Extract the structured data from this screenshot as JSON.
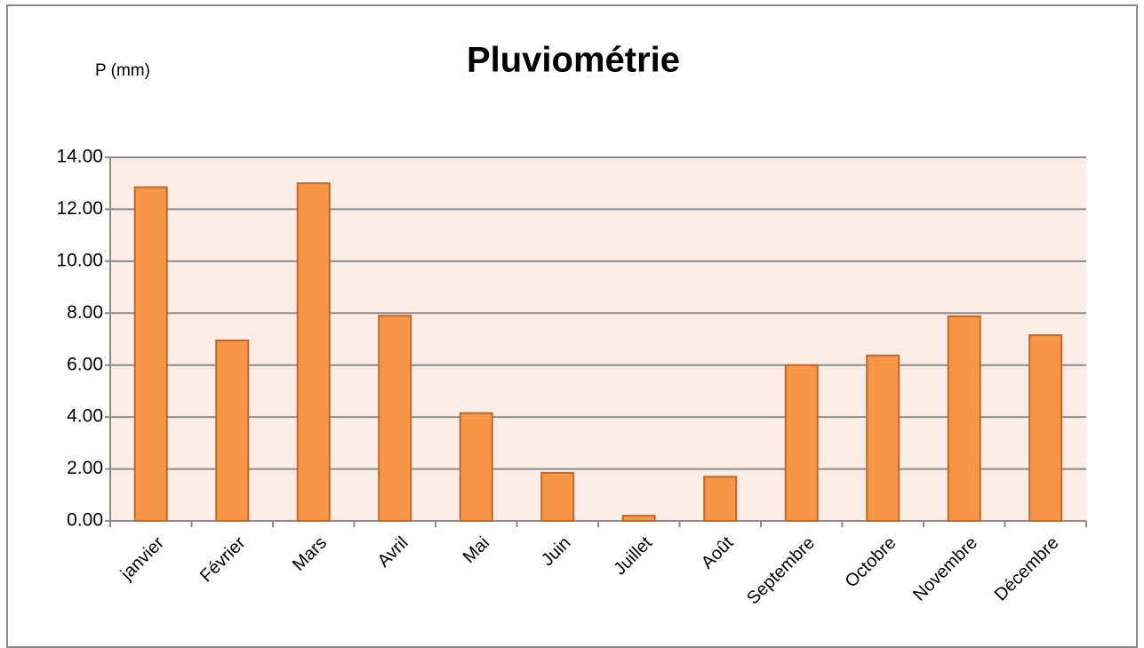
{
  "chart_data": {
    "type": "bar",
    "title": "Pluviométrie",
    "y_label": "P (mm)",
    "categories": [
      "janvier",
      "Février",
      "Mars",
      "Avril",
      "Mai",
      "Juin",
      "Juillet",
      "Août",
      "Septembre",
      "Octobre",
      "Novembre",
      "Décembre"
    ],
    "values": [
      12.85,
      6.95,
      13.0,
      7.9,
      4.15,
      1.85,
      0.2,
      1.7,
      6.0,
      6.37,
      7.88,
      7.15
    ],
    "color": "#f79646",
    "ylim": [
      0,
      14
    ],
    "yticks": [
      {
        "value": 0,
        "label": "0.00"
      },
      {
        "value": 2,
        "label": "2.00"
      },
      {
        "value": 4,
        "label": "4.00"
      },
      {
        "value": 6,
        "label": "6.00"
      },
      {
        "value": 8,
        "label": "8.00"
      },
      {
        "value": 10,
        "label": "10.00"
      },
      {
        "value": 12,
        "label": "12.00"
      },
      {
        "value": 14,
        "label": "14.00"
      }
    ],
    "grid": true
  }
}
